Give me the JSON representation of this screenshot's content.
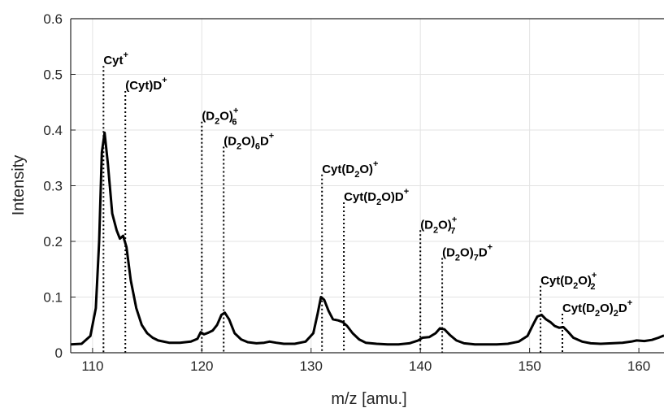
{
  "chart_data": {
    "type": "line",
    "xlabel": "m/z [amu.]",
    "ylabel": "Intensity",
    "xlim": [
      108,
      162.3
    ],
    "ylim": [
      0,
      0.6
    ],
    "xticks": [
      "110",
      "120",
      "130",
      "140",
      "150",
      "160"
    ],
    "yticks": [
      "0",
      "0.1",
      "0.2",
      "0.3",
      "0.4",
      "0.5",
      "0.6"
    ],
    "grid": true,
    "series": [
      {
        "x": [
          108,
          109,
          109.8,
          110.3,
          110.6,
          110.85,
          111.1,
          111.4,
          111.8,
          112.2,
          112.5,
          112.8,
          113.1,
          113.5,
          114,
          114.5,
          115,
          115.5,
          116,
          117,
          118,
          119,
          119.6,
          119.9,
          120.2,
          120.6,
          121,
          121.4,
          121.8,
          122.1,
          122.5,
          123,
          123.6,
          124.2,
          125,
          125.7,
          126.2,
          126.8,
          127.5,
          128.5,
          129.5,
          130.2,
          130.6,
          130.9,
          131.2,
          131.6,
          132,
          132.5,
          132.9,
          133.3,
          133.8,
          134.4,
          135,
          136,
          137,
          138,
          139,
          139.8,
          140.2,
          140.8,
          141.4,
          141.8,
          142.2,
          142.7,
          143.3,
          144,
          145,
          146,
          147,
          148,
          149,
          149.8,
          150.3,
          150.7,
          151.1,
          151.5,
          151.9,
          152.3,
          152.7,
          153.1,
          153.5,
          154,
          154.8,
          155.6,
          156.5,
          157.5,
          158.5,
          159.3,
          159.8,
          160.5,
          161.2,
          161.8,
          162.3
        ],
        "y": [
          0.015,
          0.016,
          0.03,
          0.08,
          0.2,
          0.36,
          0.395,
          0.34,
          0.25,
          0.22,
          0.205,
          0.21,
          0.19,
          0.13,
          0.08,
          0.05,
          0.035,
          0.027,
          0.022,
          0.018,
          0.018,
          0.02,
          0.025,
          0.037,
          0.033,
          0.036,
          0.04,
          0.05,
          0.068,
          0.072,
          0.06,
          0.035,
          0.024,
          0.019,
          0.017,
          0.018,
          0.02,
          0.018,
          0.016,
          0.016,
          0.02,
          0.035,
          0.07,
          0.1,
          0.095,
          0.075,
          0.06,
          0.058,
          0.055,
          0.048,
          0.035,
          0.024,
          0.018,
          0.016,
          0.015,
          0.015,
          0.017,
          0.022,
          0.027,
          0.028,
          0.035,
          0.044,
          0.042,
          0.032,
          0.022,
          0.017,
          0.015,
          0.015,
          0.015,
          0.016,
          0.02,
          0.03,
          0.05,
          0.065,
          0.068,
          0.06,
          0.055,
          0.048,
          0.045,
          0.046,
          0.038,
          0.027,
          0.02,
          0.017,
          0.016,
          0.017,
          0.018,
          0.02,
          0.022,
          0.021,
          0.023,
          0.027,
          0.031
        ]
      }
    ],
    "annotations": [
      {
        "x": 111,
        "y": 0.515,
        "base": "Cyt",
        "sub": "",
        "tail": "",
        "sup": "+"
      },
      {
        "x": 113,
        "y": 0.47,
        "base": "(Cyt)D",
        "sub": "",
        "tail": "",
        "sup": "+"
      },
      {
        "x": 120,
        "y": 0.415,
        "base": "(D",
        "sub": "2",
        "tail": "O)",
        "sup": "+",
        "sub2": "6"
      },
      {
        "x": 122,
        "y": 0.37,
        "base": "(D",
        "sub": "2",
        "tail": "O)",
        "sub2": "6",
        "tail2": "D",
        "sup": "+"
      },
      {
        "x": 131,
        "y": 0.32,
        "base": "Cyt(D",
        "sub": "2",
        "tail": "O)",
        "sup": "+"
      },
      {
        "x": 133,
        "y": 0.27,
        "base": "Cyt(D",
        "sub": "2",
        "tail": "O)D",
        "sup": "+"
      },
      {
        "x": 140,
        "y": 0.22,
        "base": "(D",
        "sub": "2",
        "tail": "O)",
        "sup": "+",
        "sub2": "7"
      },
      {
        "x": 142,
        "y": 0.17,
        "base": "(D",
        "sub": "2",
        "tail": "O)",
        "sub2": "7",
        "tail2": "D",
        "sup": "+"
      },
      {
        "x": 151,
        "y": 0.12,
        "base": "Cyt(D",
        "sub": "2",
        "tail": "O)",
        "sup": "+",
        "sub2": "2"
      },
      {
        "x": 153,
        "y": 0.07,
        "base": "Cyt(D",
        "sub": "2",
        "tail": "O)",
        "sub2": "2",
        "tail2": "D",
        "sup": "+"
      }
    ]
  }
}
